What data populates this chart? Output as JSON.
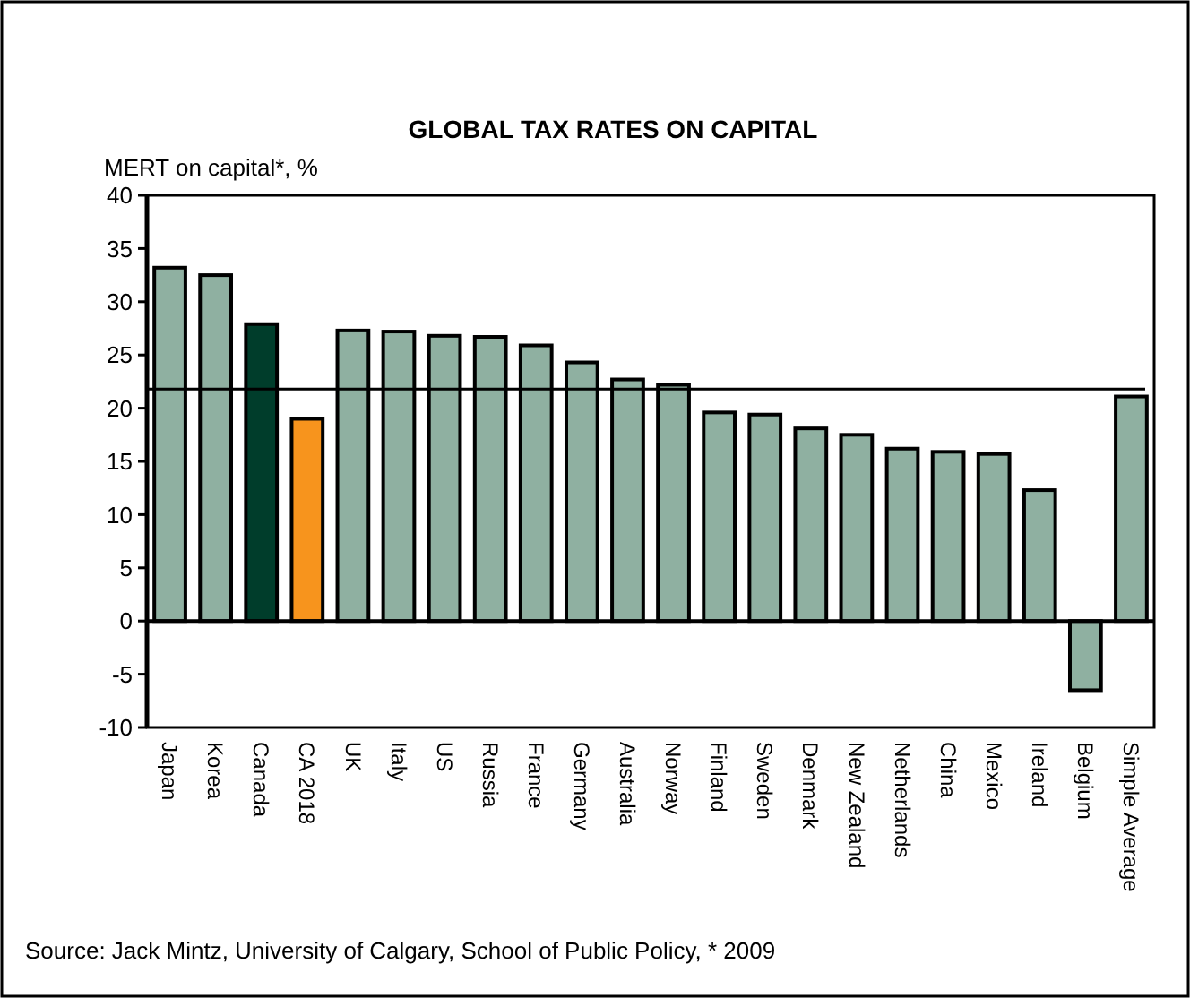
{
  "chart_data": {
    "type": "bar",
    "title": "GLOBAL TAX RATES ON CAPITAL",
    "ylabel": "MERT on capital*, %",
    "categories": [
      "Japan",
      "Korea",
      "Canada",
      "CA 2018",
      "UK",
      "Italy",
      "US",
      "Russia",
      "France",
      "Germany",
      "Australia",
      "Norway",
      "Finland",
      "Sweden",
      "Denmark",
      "New Zealand",
      "Netherlands",
      "China",
      "Mexico",
      "Ireland",
      "Belgium",
      "Simple Average"
    ],
    "values": [
      33.2,
      32.5,
      27.9,
      19.0,
      27.3,
      27.2,
      26.8,
      26.7,
      25.9,
      24.3,
      22.7,
      22.2,
      19.6,
      19.4,
      18.1,
      17.5,
      16.2,
      15.9,
      15.7,
      12.3,
      -6.5,
      21.1
    ],
    "colors": [
      "#8fb0a1",
      "#8fb0a1",
      "#003d2b",
      "#f7941d",
      "#8fb0a1",
      "#8fb0a1",
      "#8fb0a1",
      "#8fb0a1",
      "#8fb0a1",
      "#8fb0a1",
      "#8fb0a1",
      "#8fb0a1",
      "#8fb0a1",
      "#8fb0a1",
      "#8fb0a1",
      "#8fb0a1",
      "#8fb0a1",
      "#8fb0a1",
      "#8fb0a1",
      "#8fb0a1",
      "#8fb0a1",
      "#8fb0a1"
    ],
    "ylim": [
      -10,
      40
    ],
    "yticks": [
      -10,
      -5,
      0,
      5,
      10,
      15,
      20,
      25,
      30,
      35,
      40
    ],
    "ref_lines": [
      {
        "axis": "y",
        "value": 21.8,
        "color": "#000000"
      }
    ],
    "annotations": [
      "Source: Jack Mintz, University of Calgary, School of Public Policy, * 2009"
    ]
  }
}
